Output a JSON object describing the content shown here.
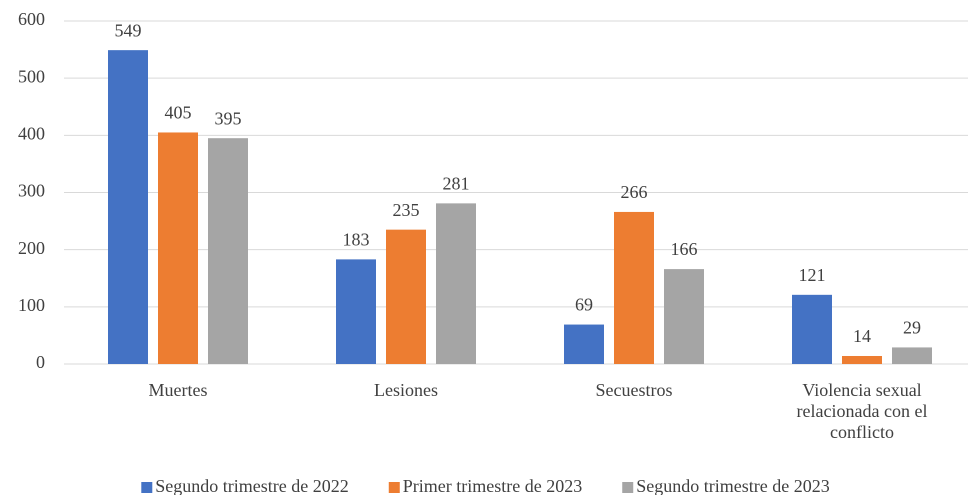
{
  "chart_data": {
    "type": "bar",
    "categories": [
      "Muertes",
      "Lesiones",
      "Secuestros",
      "Violencia sexual relacionada con el conflicto"
    ],
    "series": [
      {
        "name": "Segundo trimestre de 2022",
        "color": "#4472c4",
        "values": [
          549,
          183,
          69,
          121
        ]
      },
      {
        "name": "Primer trimestre de 2023",
        "color": "#ed7d31",
        "values": [
          405,
          235,
          266,
          14
        ]
      },
      {
        "name": "Segundo trimestre de 2023",
        "color": "#a5a5a5",
        "values": [
          395,
          281,
          166,
          29
        ]
      }
    ],
    "ylim": [
      0,
      600
    ],
    "yticks": [
      0,
      100,
      200,
      300,
      400,
      500,
      600
    ],
    "grid": true,
    "legend": "bottom"
  }
}
